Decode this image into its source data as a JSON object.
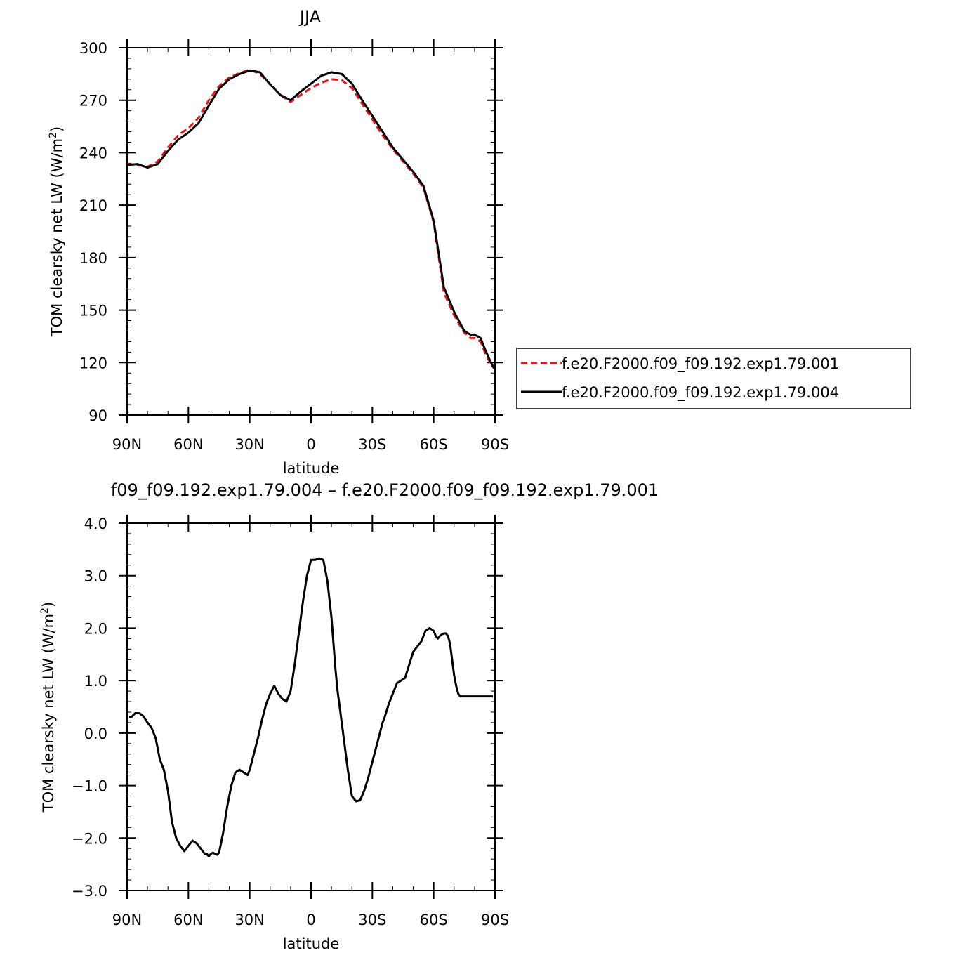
{
  "chart_data": [
    {
      "type": "line",
      "title": "JJA",
      "xlabel": "latitude",
      "ylabel": "TOM clearsky net LW (W/m",
      "ylabel_sup": "2",
      "ylabel_tail": ")",
      "xlim": [
        90,
        -90
      ],
      "ylim": [
        90,
        300
      ],
      "xticks": [
        {
          "v": 90,
          "label": "90N"
        },
        {
          "v": 60,
          "label": "60N"
        },
        {
          "v": 30,
          "label": "30N"
        },
        {
          "v": 0,
          "label": "0"
        },
        {
          "v": -30,
          "label": "30S"
        },
        {
          "v": -60,
          "label": "60S"
        },
        {
          "v": -90,
          "label": "90S"
        }
      ],
      "yticks": [
        {
          "v": 90,
          "label": "90"
        },
        {
          "v": 120,
          "label": "120"
        },
        {
          "v": 150,
          "label": "150"
        },
        {
          "v": 180,
          "label": "180"
        },
        {
          "v": 210,
          "label": "210"
        },
        {
          "v": 240,
          "label": "240"
        },
        {
          "v": 270,
          "label": "270"
        },
        {
          "v": 300,
          "label": "300"
        }
      ],
      "legend_position": "right",
      "series": [
        {
          "name": "f.e20.F2000.f09_f09.192.exp1.79.001",
          "color": "#e8141c",
          "dash": "dashed",
          "x": [
            90,
            85,
            80,
            75,
            70,
            65,
            60,
            55,
            50,
            45,
            40,
            35,
            30,
            25,
            20,
            15,
            10,
            5,
            0,
            -5,
            -10,
            -15,
            -20,
            -25,
            -30,
            -35,
            -40,
            -45,
            -50,
            -55,
            -60,
            -65,
            -70,
            -75,
            -78,
            -80,
            -83,
            -85,
            -88,
            -90
          ],
          "y": [
            233.5,
            233,
            232,
            235,
            243,
            250,
            254,
            260,
            270,
            278,
            283,
            285.5,
            287.5,
            285,
            279,
            273,
            269,
            273,
            277,
            280,
            282,
            281.5,
            277,
            268,
            259,
            250,
            242,
            235,
            228,
            220,
            200,
            160,
            147,
            137,
            134,
            134,
            132,
            126,
            119,
            116
          ]
        },
        {
          "name": "f.e20.F2000.f09_f09.192.exp1.79.004",
          "color": "#000000",
          "dash": "solid",
          "x": [
            90,
            85,
            80,
            75,
            70,
            65,
            60,
            55,
            50,
            45,
            40,
            35,
            30,
            25,
            20,
            15,
            10,
            5,
            0,
            -5,
            -10,
            -15,
            -20,
            -25,
            -30,
            -35,
            -40,
            -45,
            -50,
            -55,
            -60,
            -65,
            -70,
            -75,
            -78,
            -80,
            -83,
            -85,
            -88,
            -90
          ],
          "y": [
            233,
            233.5,
            231.5,
            233.5,
            241,
            247.5,
            251.5,
            257,
            267,
            276.5,
            282,
            285,
            287,
            286,
            279,
            273,
            270,
            275,
            279.5,
            284,
            286,
            285,
            279.5,
            270,
            261,
            252,
            243,
            236,
            229,
            221,
            201,
            163,
            149,
            138,
            136,
            136,
            134,
            128,
            120,
            116
          ]
        }
      ]
    },
    {
      "type": "line",
      "title": "f09_f09.192.exp1.79.004 – f.e20.F2000.f09_f09.192.exp1.79.001",
      "xlabel": "latitude",
      "ylabel": "TOM clearsky net LW (W/m",
      "ylabel_sup": "2",
      "ylabel_tail": ")",
      "xlim": [
        90,
        -90
      ],
      "ylim": [
        -3,
        4
      ],
      "xticks": [
        {
          "v": 90,
          "label": "90N"
        },
        {
          "v": 60,
          "label": "60N"
        },
        {
          "v": 30,
          "label": "30N"
        },
        {
          "v": 0,
          "label": "0"
        },
        {
          "v": -30,
          "label": "30S"
        },
        {
          "v": -60,
          "label": "60S"
        },
        {
          "v": -90,
          "label": "90S"
        }
      ],
      "yticks": [
        {
          "v": -3,
          "label": "−3.0"
        },
        {
          "v": -2,
          "label": "−2.0"
        },
        {
          "v": -1,
          "label": "−1.0"
        },
        {
          "v": 0,
          "label": "0.0"
        },
        {
          "v": 1,
          "label": "1.0"
        },
        {
          "v": 2,
          "label": "2.0"
        },
        {
          "v": 3,
          "label": "3.0"
        },
        {
          "v": 4,
          "label": "4.0"
        }
      ],
      "series": [
        {
          "color": "#000000",
          "dash": "solid",
          "x": [
            89,
            88,
            86,
            84,
            82,
            80,
            78,
            76,
            74,
            72,
            70,
            68,
            66,
            64,
            63,
            62,
            61,
            60,
            59,
            58,
            56,
            55,
            54,
            53,
            52,
            51,
            50,
            49,
            48,
            47,
            46,
            45,
            43,
            41,
            39,
            37,
            35,
            33,
            31,
            30,
            28,
            26,
            24,
            22,
            20,
            18,
            16,
            15,
            14,
            12,
            10,
            8,
            6,
            4,
            2,
            0,
            -2,
            -4,
            -6,
            -8,
            -10,
            -11,
            -12,
            -13,
            -14,
            -16,
            -18,
            -20,
            -22,
            -24,
            -26,
            -28,
            -30,
            -32,
            -33,
            -34,
            -35,
            -36,
            -38,
            -40,
            -42,
            -44,
            -46,
            -48,
            -50,
            -52,
            -54,
            -56,
            -58,
            -60,
            -61,
            -62,
            -63,
            -64,
            -65,
            -66,
            -67,
            -68,
            -69,
            -70,
            -71,
            -72,
            -73,
            -74,
            -75,
            -76,
            -77,
            -78,
            -79,
            -80,
            -81,
            -82,
            -83,
            -84,
            -85,
            -86,
            -87,
            -88,
            -89
          ],
          "y": [
            0.3,
            0.3,
            0.38,
            0.38,
            0.32,
            0.2,
            0.1,
            -0.1,
            -0.5,
            -0.7,
            -1.1,
            -1.7,
            -2.0,
            -2.15,
            -2.2,
            -2.25,
            -2.2,
            -2.15,
            -2.1,
            -2.05,
            -2.1,
            -2.15,
            -2.2,
            -2.25,
            -2.3,
            -2.3,
            -2.35,
            -2.3,
            -2.28,
            -2.3,
            -2.32,
            -2.28,
            -1.9,
            -1.4,
            -1.0,
            -0.75,
            -0.7,
            -0.75,
            -0.8,
            -0.7,
            -0.4,
            -0.1,
            0.25,
            0.55,
            0.75,
            0.9,
            0.75,
            0.7,
            0.65,
            0.6,
            0.8,
            1.3,
            1.9,
            2.5,
            3.0,
            3.3,
            3.3,
            3.33,
            3.3,
            2.9,
            2.2,
            1.7,
            1.2,
            0.8,
            0.5,
            -0.1,
            -0.7,
            -1.2,
            -1.3,
            -1.28,
            -1.1,
            -0.85,
            -0.55,
            -0.25,
            -0.1,
            0.05,
            0.2,
            0.3,
            0.55,
            0.75,
            0.95,
            1.0,
            1.05,
            1.3,
            1.55,
            1.65,
            1.75,
            1.95,
            2.0,
            1.95,
            1.85,
            1.8,
            1.85,
            1.88,
            1.9,
            1.9,
            1.85,
            1.7,
            1.4,
            1.1,
            0.9,
            0.75,
            0.7,
            0.7,
            0.7,
            0.7,
            0.7,
            0.7,
            0.7,
            0.7,
            0.7,
            0.7,
            0.7,
            0.7,
            0.7,
            0.7,
            0.7,
            0.7,
            0.7
          ]
        }
      ]
    }
  ]
}
